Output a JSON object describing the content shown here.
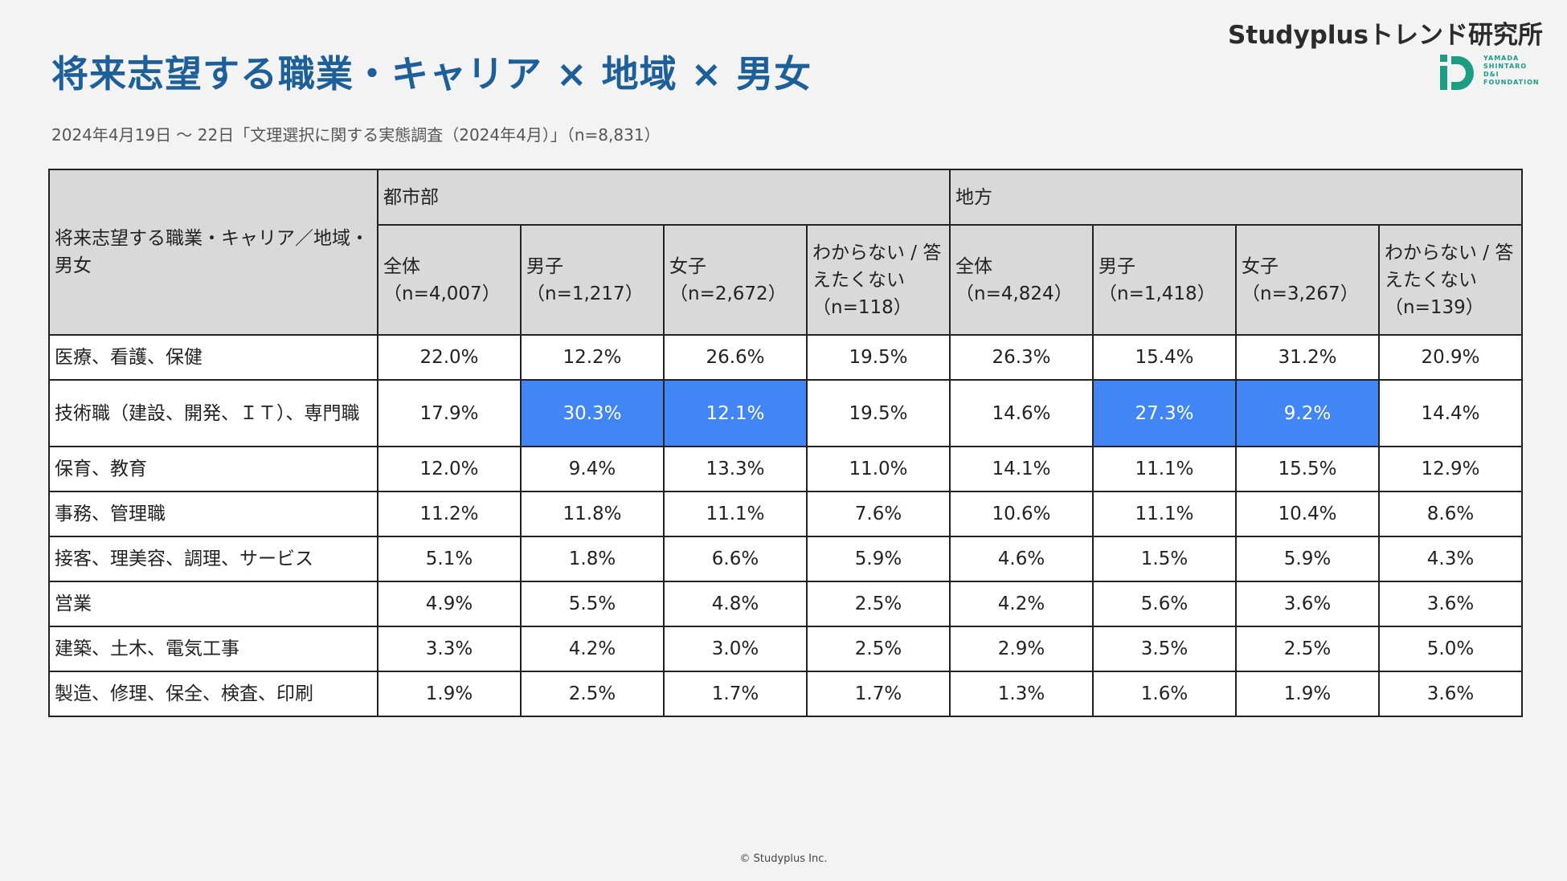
{
  "title": "将来志望する職業・キャリア × 地域 × 男女",
  "subtitle": "2024年4月19日 〜 22日「文理選択に関する実態調査（2024年4月）」（n=8,831）",
  "brand": {
    "name": "Studyplusトレンド研究所",
    "foundation_lines": [
      "YAMADA",
      "SHINTARO",
      "D&I",
      "FOUNDATION"
    ],
    "logo_color": "#1b9c83"
  },
  "table": {
    "corner_header": "将来志望する職業・キャリア／地域・男女",
    "regions": [
      "都市部",
      "地方"
    ],
    "subheaders": [
      [
        "全体",
        "（n=4,007）"
      ],
      [
        "男子",
        "（n=1,217）"
      ],
      [
        "女子",
        "（n=2,672）"
      ],
      [
        "わからない / 答えたくない",
        "（n=118）"
      ],
      [
        "全体",
        "（n=4,824）"
      ],
      [
        "男子",
        "（n=1,418）"
      ],
      [
        "女子",
        "（n=3,267）"
      ],
      [
        "わからない / 答えたくない",
        "（n=139）"
      ]
    ],
    "highlight_color": "#4285f4",
    "rows": [
      {
        "label": "医療、看護、保健",
        "values": [
          "22.0%",
          "12.2%",
          "26.6%",
          "19.5%",
          "26.3%",
          "15.4%",
          "31.2%",
          "20.9%"
        ],
        "highlight": []
      },
      {
        "label": "技術職（建設、開発、ＩＴ）、専門職",
        "values": [
          "17.9%",
          "30.3%",
          "12.1%",
          "19.5%",
          "14.6%",
          "27.3%",
          "9.2%",
          "14.4%"
        ],
        "highlight": [
          1,
          2,
          5,
          6
        ]
      },
      {
        "label": "保育、教育",
        "values": [
          "12.0%",
          "9.4%",
          "13.3%",
          "11.0%",
          "14.1%",
          "11.1%",
          "15.5%",
          "12.9%"
        ],
        "highlight": []
      },
      {
        "label": "事務、管理職",
        "values": [
          "11.2%",
          "11.8%",
          "11.1%",
          "7.6%",
          "10.6%",
          "11.1%",
          "10.4%",
          "8.6%"
        ],
        "highlight": []
      },
      {
        "label": "接客、理美容、調理、サービス",
        "values": [
          "5.1%",
          "1.8%",
          "6.6%",
          "5.9%",
          "4.6%",
          "1.5%",
          "5.9%",
          "4.3%"
        ],
        "highlight": []
      },
      {
        "label": "営業",
        "values": [
          "4.9%",
          "5.5%",
          "4.8%",
          "2.5%",
          "4.2%",
          "5.6%",
          "3.6%",
          "3.6%"
        ],
        "highlight": []
      },
      {
        "label": "建築、土木、電気工事",
        "values": [
          "3.3%",
          "4.2%",
          "3.0%",
          "2.5%",
          "2.9%",
          "3.5%",
          "2.5%",
          "5.0%"
        ],
        "highlight": []
      },
      {
        "label": "製造、修理、保全、検査、印刷",
        "values": [
          "1.9%",
          "2.5%",
          "1.7%",
          "1.7%",
          "1.3%",
          "1.6%",
          "1.9%",
          "3.6%"
        ],
        "highlight": []
      }
    ]
  },
  "footer": "© Studyplus Inc."
}
